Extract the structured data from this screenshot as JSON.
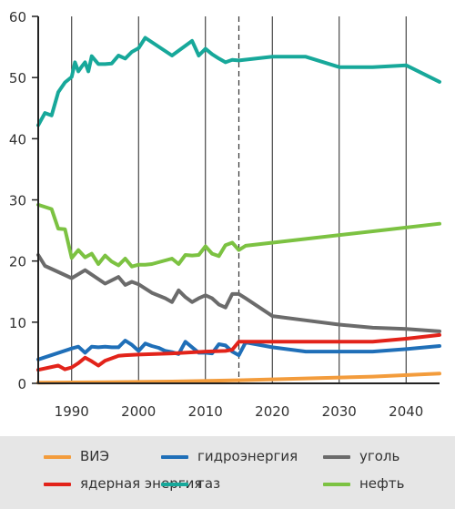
{
  "chart_data": {
    "type": "line",
    "title": "",
    "xlabel": "",
    "ylabel": "",
    "xlim": [
      1985,
      2045
    ],
    "ylim": [
      0,
      60
    ],
    "x_ticks": [
      1990,
      2000,
      2010,
      2020,
      2030,
      2040
    ],
    "y_ticks": [
      0,
      10,
      20,
      30,
      40,
      50,
      60
    ],
    "x_tick_labels": [
      "1990",
      "2000",
      "2010",
      "2020",
      "2030",
      "2040"
    ],
    "y_tick_labels": [
      "0",
      "10",
      "20",
      "30",
      "40",
      "50",
      "60"
    ],
    "grid": "vertical",
    "reference_line": {
      "x": 2015,
      "style": "dashed"
    },
    "legend_position": "bottom",
    "series": [
      {
        "name": "ВИЭ",
        "color": "#f39c3c",
        "x": [
          1985,
          1995,
          2005,
          2015,
          2025,
          2035,
          2045
        ],
        "y": [
          0.1,
          0.2,
          0.3,
          0.5,
          0.8,
          1.1,
          1.6
        ]
      },
      {
        "name": "гидроэнергия",
        "color": "#1f6fb8",
        "x": [
          1985,
          1990,
          1991,
          1992,
          1993,
          1994,
          1995,
          1996,
          1997,
          1998,
          1999,
          2000,
          2001,
          2002,
          2003,
          2004,
          2005,
          2006,
          2007,
          2008,
          2009,
          2010,
          2011,
          2012,
          2013,
          2014,
          2015,
          2016,
          2020,
          2025,
          2030,
          2035,
          2040,
          2045
        ],
        "y": [
          3.9,
          5.7,
          6.0,
          5.0,
          6.0,
          5.9,
          6.0,
          5.9,
          5.9,
          7.0,
          6.3,
          5.3,
          6.5,
          6.1,
          5.8,
          5.3,
          5.1,
          4.8,
          6.8,
          5.9,
          5.0,
          5.0,
          4.9,
          6.4,
          6.2,
          5.2,
          4.6,
          6.7,
          5.9,
          5.2,
          5.2,
          5.2,
          5.6,
          6.1
        ]
      },
      {
        "name": "уголь",
        "color": "#6b6b6b",
        "x": [
          1985,
          1986,
          1990,
          1992,
          1995,
          1997,
          1998,
          1999,
          2000,
          2002,
          2004,
          2005,
          2006,
          2007,
          2008,
          2009,
          2010,
          2011,
          2012,
          2013,
          2014,
          2015,
          2016,
          2020,
          2025,
          2030,
          2035,
          2040,
          2045
        ],
        "y": [
          21.0,
          19.2,
          17.2,
          18.5,
          16.3,
          17.4,
          16.1,
          16.6,
          16.2,
          14.8,
          13.9,
          13.3,
          15.2,
          14.1,
          13.3,
          13.9,
          14.4,
          13.9,
          12.9,
          12.4,
          14.6,
          14.6,
          13.9,
          11.0,
          10.3,
          9.6,
          9.1,
          8.9,
          8.5
        ]
      },
      {
        "name": "ядерная энергия",
        "color": "#e2231a",
        "x": [
          1985,
          1988,
          1989,
          1990,
          1991,
          1992,
          1993,
          1994,
          1995,
          1997,
          1998,
          2000,
          2005,
          2010,
          2013,
          2014,
          2015,
          2020,
          2025,
          2030,
          2035,
          2040,
          2045
        ],
        "y": [
          2.2,
          2.9,
          2.3,
          2.6,
          3.3,
          4.2,
          3.6,
          2.9,
          3.7,
          4.5,
          4.6,
          4.7,
          4.9,
          5.2,
          5.3,
          5.5,
          6.8,
          6.8,
          6.8,
          6.8,
          6.8,
          7.3,
          7.9
        ]
      },
      {
        "name": "газ",
        "color": "#17a89a",
        "x": [
          1985,
          1986,
          1987,
          1988,
          1989,
          1990,
          1990.5,
          1991,
          1991.5,
          1992,
          1992.5,
          1993,
          1994,
          1995,
          1996,
          1997,
          1998,
          1999,
          2000,
          2001,
          2005,
          2008,
          2009,
          2010,
          2011,
          2012,
          2013,
          2014,
          2015,
          2020,
          2025,
          2030,
          2035,
          2040,
          2045
        ],
        "y": [
          42.2,
          44.2,
          43.8,
          47.6,
          49.2,
          50.1,
          52.5,
          51.0,
          51.8,
          52.5,
          51.0,
          53.5,
          52.2,
          52.2,
          52.3,
          53.6,
          53.1,
          54.2,
          54.8,
          56.5,
          53.6,
          56.0,
          53.6,
          54.7,
          53.8,
          53.1,
          52.5,
          52.9,
          52.8,
          53.4,
          53.4,
          51.7,
          51.7,
          52.0,
          49.3
        ]
      },
      {
        "name": "нефть",
        "color": "#7cc242",
        "x": [
          1985,
          1987,
          1988,
          1989,
          1990,
          1991,
          1992,
          1993,
          1994,
          1995,
          1996,
          1997,
          1998,
          1999,
          2000,
          2001,
          2002,
          2005,
          2006,
          2007,
          2008,
          2009,
          2010,
          2011,
          2012,
          2013,
          2014,
          2015,
          2016,
          2045
        ],
        "y": [
          29.2,
          28.5,
          25.3,
          25.2,
          20.5,
          21.8,
          20.6,
          21.2,
          19.5,
          20.9,
          19.9,
          19.3,
          20.4,
          19.1,
          19.4,
          19.4,
          19.5,
          20.4,
          19.5,
          21.0,
          20.9,
          21.0,
          22.4,
          21.2,
          20.8,
          22.6,
          23.0,
          21.8,
          22.5,
          26.1
        ]
      }
    ]
  }
}
